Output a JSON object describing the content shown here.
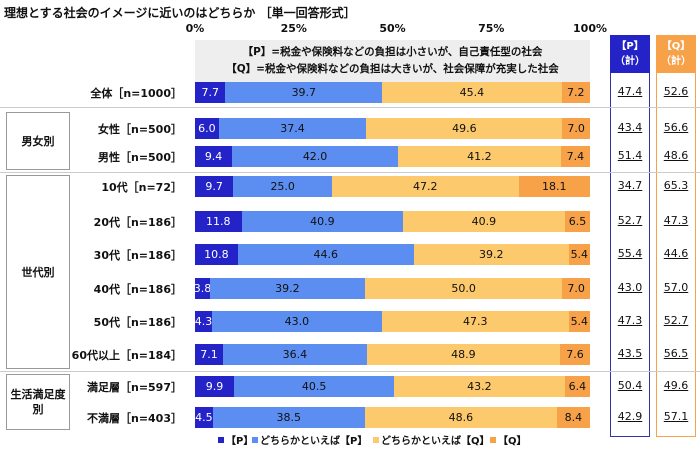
{
  "chart_data": {
    "type": "bar",
    "stacked": true,
    "orientation": "horizontal",
    "title": "理想とする社会のイメージに近いのはどちらか ［単一回答形式］",
    "note": [
      "【P】=税金や保険料などの負担は小さいが、自己責任型の社会",
      "【Q】=税金や保険料などの負担は大きいが、社会保障が充実した社会"
    ],
    "xlim": [
      0,
      100
    ],
    "xticks": [
      "0%",
      "25%",
      "50%",
      "75%",
      "100%"
    ],
    "colors": {
      "P": "#2323c8",
      "maybeP": "#5b8ef0",
      "maybeQ": "#fcc96c",
      "Q": "#f7a248"
    },
    "series": [
      {
        "name": "【P】"
      },
      {
        "name": "どちらかといえば【P】"
      },
      {
        "name": "どちらかといえば【Q】"
      },
      {
        "name": "【Q】"
      }
    ],
    "totals_headers": {
      "P": "【P】（計）",
      "Q": "【Q】（計）"
    },
    "groups": [
      {
        "label": "男女別",
        "rows": [
          1,
          2
        ]
      },
      {
        "label": "世代別",
        "rows": [
          3,
          4,
          5,
          6,
          7,
          8
        ]
      },
      {
        "label": "生活満足度別",
        "rows": [
          9,
          10
        ]
      }
    ],
    "rows": [
      {
        "label": "全体［n=1000］",
        "values": [
          7.7,
          39.7,
          45.4,
          7.2
        ],
        "P_total": "47.4",
        "Q_total": "52.6"
      },
      {
        "label": "女性［n=500］",
        "values": [
          6.0,
          37.4,
          49.6,
          7.0
        ],
        "P_total": "43.4",
        "Q_total": "56.6"
      },
      {
        "label": "男性［n=500］",
        "values": [
          9.4,
          42.0,
          41.2,
          7.4
        ],
        "P_total": "51.4",
        "Q_total": "48.6"
      },
      {
        "label": "10代［n=72］",
        "values": [
          9.7,
          25.0,
          47.2,
          18.1
        ],
        "P_total": "34.7",
        "Q_total": "65.3"
      },
      {
        "label": "20代［n=186］",
        "values": [
          11.8,
          40.9,
          40.9,
          6.5
        ],
        "P_total": "52.7",
        "Q_total": "47.3"
      },
      {
        "label": "30代［n=186］",
        "values": [
          10.8,
          44.6,
          39.2,
          5.4
        ],
        "P_total": "55.4",
        "Q_total": "44.6"
      },
      {
        "label": "40代［n=186］",
        "values": [
          3.8,
          39.2,
          50.0,
          7.0
        ],
        "P_total": "43.0",
        "Q_total": "57.0"
      },
      {
        "label": "50代［n=186］",
        "values": [
          4.3,
          43.0,
          47.3,
          5.4
        ],
        "P_total": "47.3",
        "Q_total": "52.7"
      },
      {
        "label": "60代以上［n=184］",
        "values": [
          7.1,
          36.4,
          48.9,
          7.6
        ],
        "P_total": "43.5",
        "Q_total": "56.5"
      },
      {
        "label": "満足層［n=597］",
        "values": [
          9.9,
          40.5,
          43.2,
          6.4
        ],
        "P_total": "50.4",
        "Q_total": "49.6"
      },
      {
        "label": "不満層［n=403］",
        "values": [
          4.5,
          38.5,
          48.6,
          8.4
        ],
        "P_total": "42.9",
        "Q_total": "57.1"
      }
    ]
  }
}
